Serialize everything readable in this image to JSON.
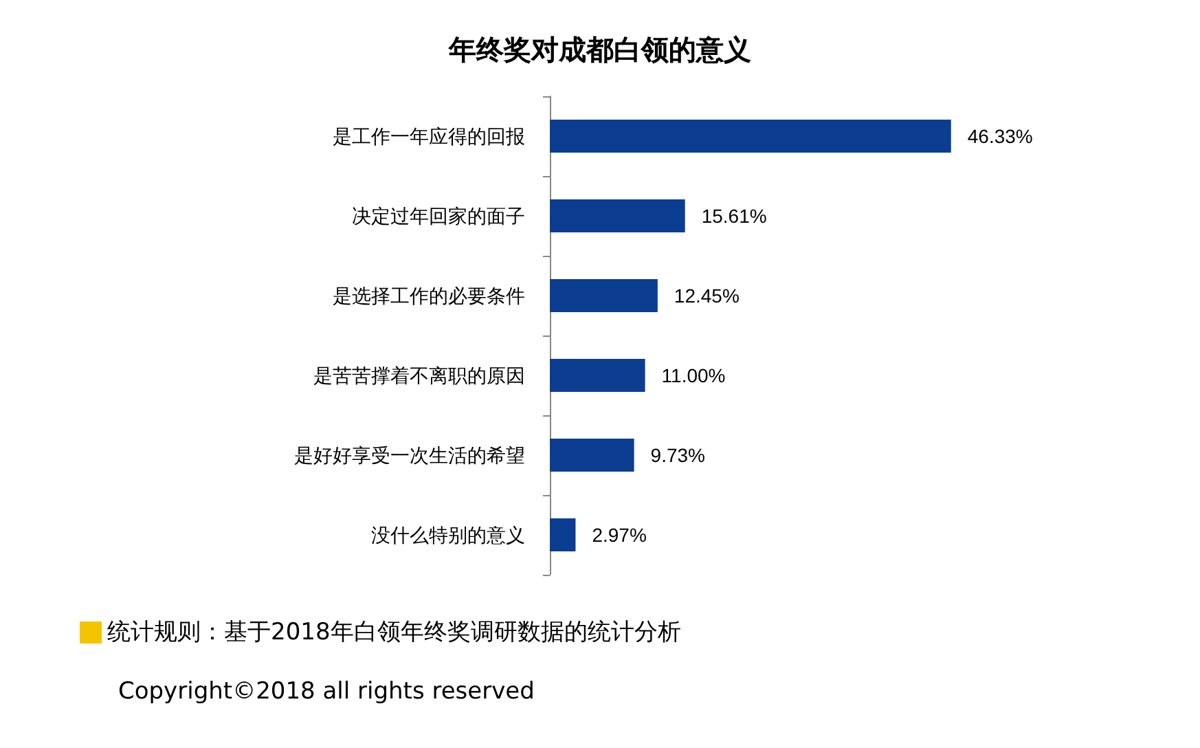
{
  "chart_data": {
    "type": "bar",
    "orientation": "horizontal",
    "title": "年终奖对成都白领的意义",
    "categories": [
      "是工作一年应得的回报",
      "决定过年回家的面子",
      "是选择工作的必要条件",
      "是苦苦撑着不离职的原因",
      "是好好享受一次生活的希望",
      "没什么特别的意义"
    ],
    "values": [
      46.33,
      15.61,
      12.45,
      11.0,
      9.73,
      2.97
    ],
    "value_labels": [
      "46.33%",
      "15.61%",
      "12.45%",
      "11.00%",
      "9.73%",
      "2.97%"
    ],
    "color": "#0b3d91",
    "annotations": [
      "统计规则：基于2018年白领年终奖调研数据的统计分析",
      "Copyright©2018 all rights reserved"
    ]
  }
}
